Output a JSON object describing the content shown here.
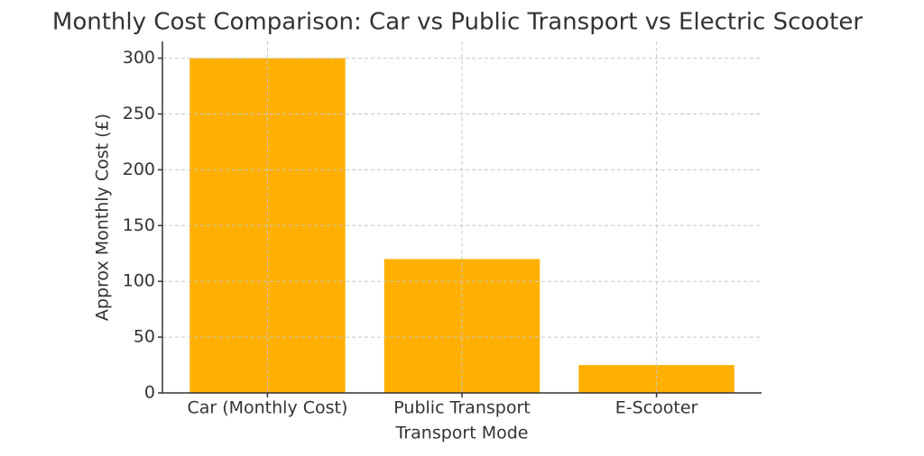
{
  "chart_data": {
    "type": "bar",
    "title": "Monthly Cost Comparison: Car vs Public Transport vs Electric Scooter",
    "x_label": "Transport Mode",
    "y_label": "Approx Monthly Cost (£)",
    "categories": [
      "Car (Monthly Cost)",
      "Public Transport",
      "E-Scooter"
    ],
    "values": [
      300,
      120,
      25
    ],
    "color": "#ffb000",
    "ylim": [
      0,
      315
    ],
    "yticks": [
      0,
      50,
      100,
      150,
      200,
      250,
      300
    ],
    "grid": true
  }
}
